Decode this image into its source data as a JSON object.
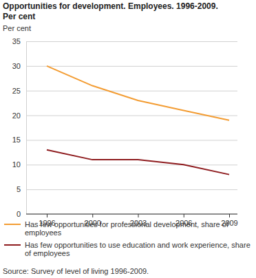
{
  "chart_data": {
    "type": "line",
    "title": "Opportunities for development. Employees. 1996-2009.",
    "subtitle": "Per cent",
    "y_label": "Per cent",
    "categories": [
      "1996",
      "2000",
      "2003",
      "2006",
      "2009"
    ],
    "series": [
      {
        "name": "Has few opportunities for professional development, share of employees",
        "color": "#f39c32",
        "values": [
          30,
          26,
          23,
          21,
          19
        ]
      },
      {
        "name": "Has few opportunities to use education and work experience, share of employees",
        "color": "#8e1b1e",
        "values": [
          13,
          11,
          11,
          10,
          8
        ]
      }
    ],
    "ylim": [
      0,
      35
    ],
    "yticks": [
      0,
      5,
      10,
      15,
      20,
      25,
      30,
      35
    ],
    "grid": true,
    "legend": "bottom",
    "annotations": [
      "Source: Survey of level of living 1996-2009."
    ]
  }
}
